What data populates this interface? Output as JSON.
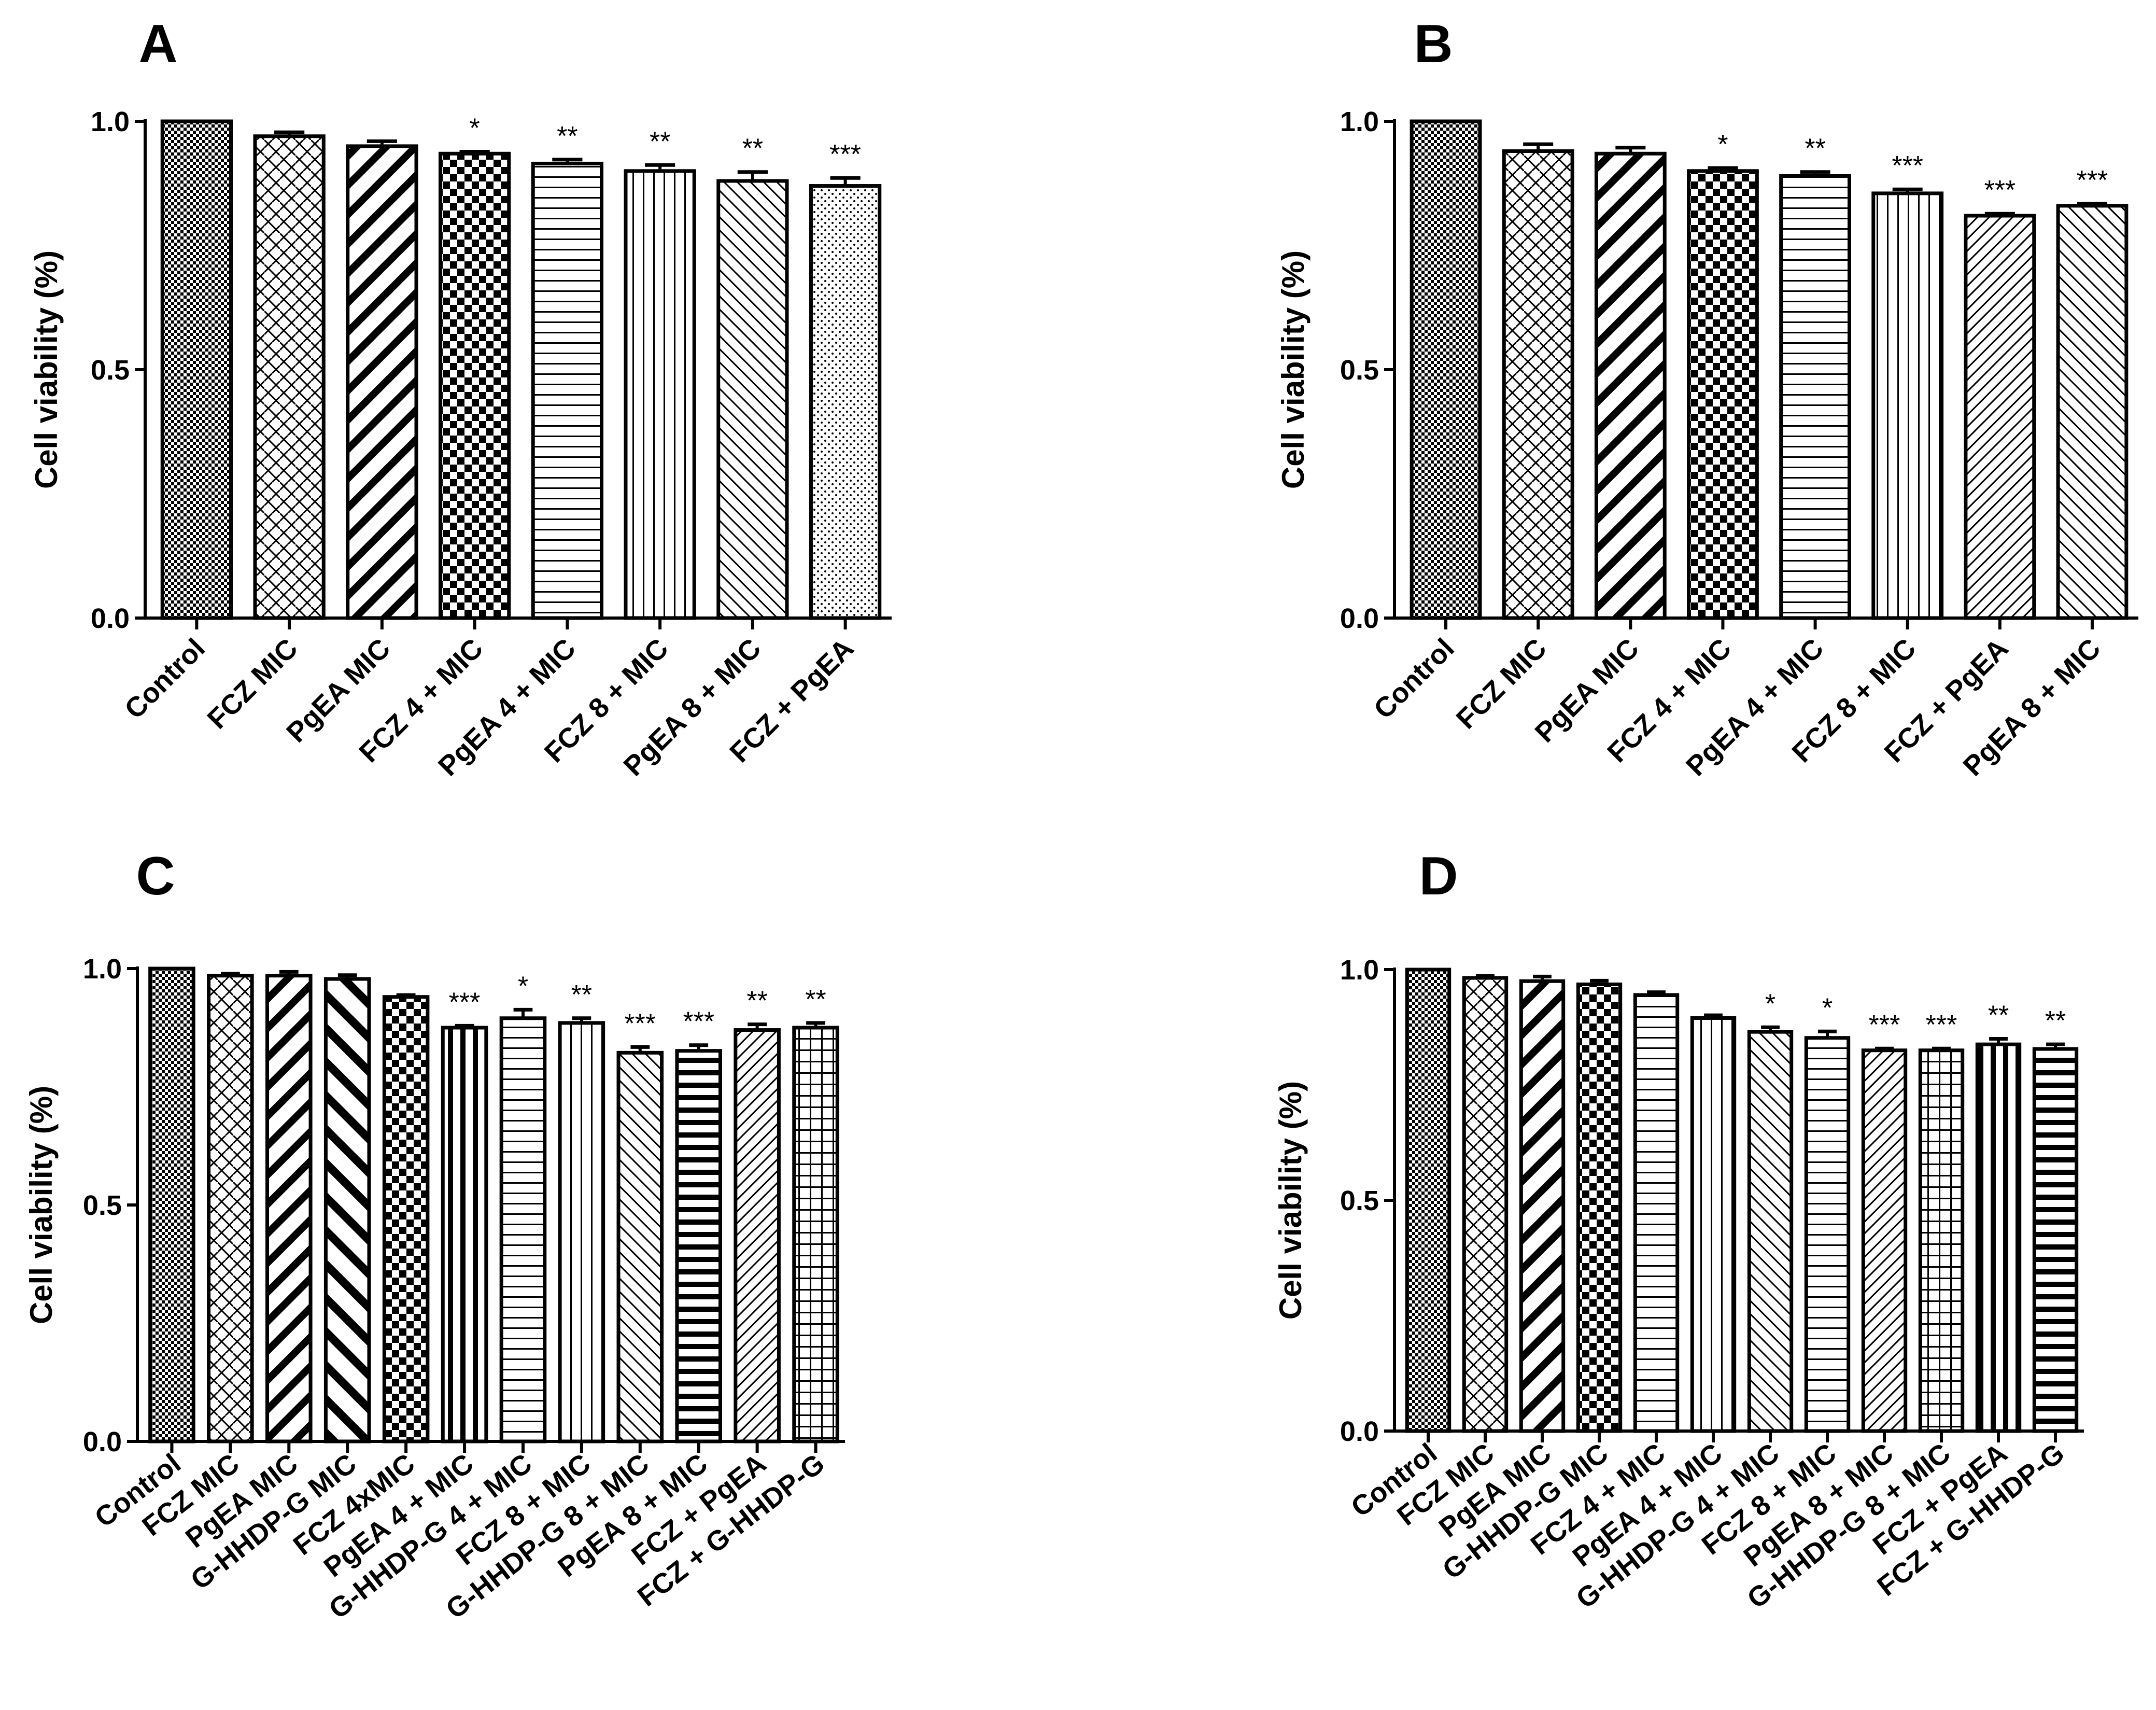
{
  "chart_data": [
    {
      "type": "bar",
      "panel": "A",
      "ylabel": "Cell viability (%)",
      "xlabel": "",
      "ylim": [
        0,
        1.0
      ],
      "yticks": [
        "0.0",
        "0.5",
        "1.0"
      ],
      "categories": [
        "Control",
        "FCZ MIC",
        "PgEA MIC",
        "FCZ 4 + MIC",
        "PgEA 4 + MIC",
        "FCZ 8 + MIC",
        "PgEA 8 + MIC",
        "FCZ + PgEA"
      ],
      "values": [
        1.0,
        0.97,
        0.95,
        0.935,
        0.915,
        0.9,
        0.88,
        0.87
      ],
      "errors": [
        0.0,
        0.008,
        0.01,
        0.004,
        0.008,
        0.012,
        0.018,
        0.016
      ],
      "significance": [
        "",
        "",
        "",
        "*",
        "**",
        "**",
        "**",
        "***"
      ],
      "patterns": [
        "checker",
        "weave",
        "diag",
        "check-big",
        "hlines",
        "vlines",
        "diag-fine",
        "dots"
      ]
    },
    {
      "type": "bar",
      "panel": "B",
      "ylabel": "Cell viability (%)",
      "xlabel": "",
      "ylim": [
        0,
        1.0
      ],
      "yticks": [
        "0.0",
        "0.5",
        "1.0"
      ],
      "categories": [
        "Control",
        "FCZ MIC",
        "PgEA MIC",
        "FCZ 4 + MIC",
        "PgEA 4 + MIC",
        "FCZ 8 + MIC",
        "FCZ + PgEA",
        "PgEA 8 + MIC"
      ],
      "values": [
        1.0,
        0.94,
        0.935,
        0.9,
        0.89,
        0.855,
        0.81,
        0.83
      ],
      "errors": [
        0.0,
        0.014,
        0.012,
        0.006,
        0.008,
        0.008,
        0.004,
        0.004
      ],
      "significance": [
        "",
        "",
        "",
        "*",
        "**",
        "***",
        "***",
        "***"
      ],
      "patterns": [
        "checker",
        "weave",
        "diag",
        "check-big",
        "hlines",
        "vlines",
        "diag-back-fine",
        "diag-fine"
      ]
    },
    {
      "type": "bar",
      "panel": "C",
      "ylabel": "Cell viability (%)",
      "xlabel": "",
      "ylim": [
        0,
        1.0
      ],
      "yticks": [
        "0.0",
        "0.5",
        "1.0"
      ],
      "categories": [
        "Control",
        "FCZ MIC",
        "PgEA MIC",
        "G-HHDP-G MIC",
        "FCZ 4xMIC",
        "PgEA 4 + MIC",
        "G-HHDP-G 4 + MIC",
        "FCZ 8 + MIC",
        "G-HHDP-G 8 + MIC",
        "PgEA 8 + MIC",
        "FCZ + PgEA",
        "FCZ + G-HHDP-G"
      ],
      "values": [
        1.0,
        0.985,
        0.985,
        0.978,
        0.94,
        0.875,
        0.895,
        0.885,
        0.822,
        0.826,
        0.87,
        0.875
      ],
      "errors": [
        0.0,
        0.004,
        0.008,
        0.008,
        0.004,
        0.004,
        0.018,
        0.01,
        0.012,
        0.012,
        0.012,
        0.01
      ],
      "significance": [
        "",
        "",
        "",
        "",
        "",
        "***",
        "*",
        "**",
        "***",
        "***",
        "**",
        "**"
      ],
      "patterns": [
        "checker",
        "weave",
        "diag",
        "diag-wide",
        "check-big",
        "vlines-thick",
        "hlines",
        "vlines",
        "diag-fine",
        "hlines-thick",
        "diag-back-fine",
        "grid"
      ]
    },
    {
      "type": "bar",
      "panel": "D",
      "ylabel": "Cell viability (%)",
      "xlabel": "",
      "ylim": [
        0,
        1.0
      ],
      "yticks": [
        "0.0",
        "0.5",
        "1.0"
      ],
      "categories": [
        "Control",
        "FCZ MIC",
        "PgEA MIC",
        "G-HHDP-G MIC",
        "FCZ 4 + MIC",
        "PgEA 4 + MIC",
        "G-HHDP-G 4 + MIC",
        "FCZ 8 + MIC",
        "PgEA 8 + MIC",
        "G-HHDP-G 8 + MIC",
        "FCZ + PgEA",
        "FCZ + G-HHDP-G"
      ],
      "values": [
        1.0,
        0.982,
        0.975,
        0.968,
        0.945,
        0.895,
        0.865,
        0.852,
        0.825,
        0.825,
        0.838,
        0.828
      ],
      "errors": [
        0.0,
        0.004,
        0.01,
        0.008,
        0.006,
        0.006,
        0.01,
        0.014,
        0.004,
        0.004,
        0.012,
        0.01
      ],
      "significance": [
        "",
        "",
        "",
        "",
        "",
        "",
        "*",
        "*",
        "***",
        "***",
        "**",
        "**"
      ],
      "patterns": [
        "checker",
        "weave",
        "diag",
        "check-big",
        "hlines",
        "vlines",
        "diag-fine",
        "hlines",
        "diag-back-fine",
        "grid",
        "vlines-thick",
        "hlines-thick"
      ]
    }
  ]
}
